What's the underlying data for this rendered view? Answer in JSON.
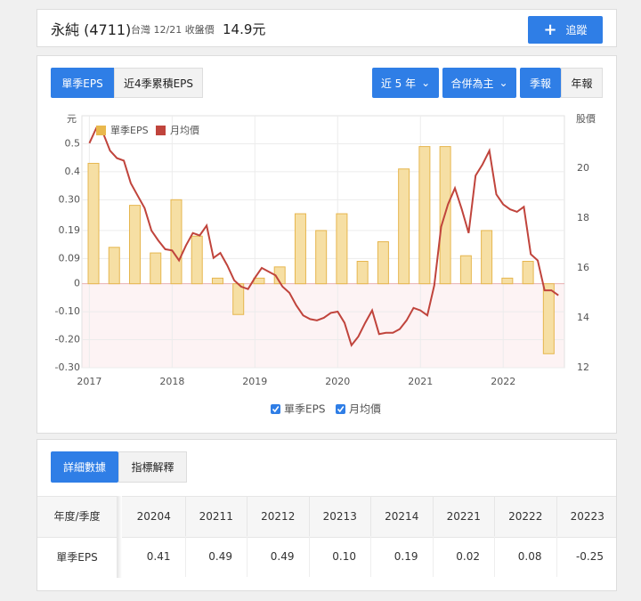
{
  "header": {
    "title": "永純 (4711)",
    "market": "台灣 12/21 收盤價",
    "price": "14.9元",
    "follow": "追蹤"
  },
  "controls": {
    "tabs": [
      "單季EPS",
      "近4季累積EPS"
    ],
    "range": "近 5 年",
    "basis": "合併為主",
    "periods": [
      "季報",
      "年報"
    ]
  },
  "chart_data": {
    "type": "bar-line",
    "ylabel": "元",
    "y2label": "股價",
    "xlim": [
      2016.91,
      2022.74
    ],
    "xticks": [
      2017,
      2018,
      2019,
      2020,
      2021,
      2022
    ],
    "ylim": [
      -0.3,
      0.6
    ],
    "yticks": [
      0.5,
      0.4,
      {
        "value": 0.3,
        "label": "0.30"
      },
      0.19,
      0.09,
      0,
      {
        "value": -0.1,
        "label": "-0.10"
      },
      {
        "value": -0.2,
        "label": "-0.20"
      },
      {
        "value": -0.3,
        "label": "-0.30"
      }
    ],
    "y2lim": [
      12,
      22.1
    ],
    "y2ticks": [
      12,
      14,
      16,
      18,
      20
    ],
    "grid": true,
    "series": [
      {
        "name": "單季EPS",
        "type": "bar",
        "color": "#f6dfa4",
        "x": [
          2017.05,
          2017.3,
          2017.55,
          2017.8,
          2018.05,
          2018.3,
          2018.55,
          2018.8,
          2019.05,
          2019.3,
          2019.55,
          2019.8,
          2020.05,
          2020.3,
          2020.55,
          2020.8,
          2021.05,
          2021.3,
          2021.55,
          2021.8,
          2022.05,
          2022.3,
          2022.55
        ],
        "values": [
          0.43,
          0.13,
          0.28,
          0.11,
          0.3,
          0.17,
          0.02,
          -0.11,
          0.02,
          0.06,
          0.25,
          0.19,
          0.25,
          0.08,
          0.15,
          0.41,
          0.49,
          0.49,
          0.1,
          0.19,
          0.02,
          0.08,
          -0.25
        ]
      },
      {
        "name": "月均價",
        "type": "line",
        "color": "#c0443c",
        "axis": "y2",
        "x": [
          2017,
          2017.083,
          2017.167,
          2017.25,
          2017.333,
          2017.417,
          2017.5,
          2017.583,
          2017.667,
          2017.75,
          2017.833,
          2017.917,
          2018,
          2018.083,
          2018.167,
          2018.25,
          2018.333,
          2018.417,
          2018.5,
          2018.583,
          2018.667,
          2018.75,
          2018.833,
          2018.917,
          2019,
          2019.083,
          2019.167,
          2019.25,
          2019.333,
          2019.417,
          2019.5,
          2019.583,
          2019.667,
          2019.75,
          2019.833,
          2019.917,
          2020,
          2020.083,
          2020.167,
          2020.25,
          2020.333,
          2020.417,
          2020.5,
          2020.583,
          2020.667,
          2020.75,
          2020.833,
          2020.917,
          2021,
          2021.083,
          2021.167,
          2021.25,
          2021.333,
          2021.417,
          2021.5,
          2021.583,
          2021.667,
          2021.75,
          2021.833,
          2021.917,
          2022,
          2022.083,
          2022.167,
          2022.25,
          2022.333,
          2022.417,
          2022.5,
          2022.583,
          2022.667
        ],
        "values": [
          21.0,
          21.6,
          21.4,
          20.7,
          20.4,
          20.3,
          19.4,
          18.9,
          18.4,
          17.5,
          17.1,
          16.75,
          16.7,
          16.3,
          16.9,
          17.4,
          17.3,
          17.7,
          16.4,
          16.6,
          16.1,
          15.5,
          15.25,
          15.15,
          15.6,
          16.0,
          15.85,
          15.7,
          15.25,
          15.0,
          14.5,
          14.1,
          13.95,
          13.9,
          14.0,
          14.2,
          14.25,
          13.8,
          12.9,
          13.25,
          13.8,
          14.3,
          13.35,
          13.4,
          13.4,
          13.55,
          13.9,
          14.4,
          14.3,
          14.1,
          15.3,
          17.65,
          18.55,
          19.2,
          18.35,
          17.4,
          19.7,
          20.15,
          20.7,
          18.95,
          18.55,
          18.35,
          18.25,
          18.45,
          16.55,
          16.3,
          15.1,
          15.1,
          14.9
        ]
      }
    ]
  },
  "table": {
    "tabs": [
      "詳細數據",
      "指標解釋"
    ],
    "header": [
      "年度/季度",
      "20204",
      "20211",
      "20212",
      "20213",
      "20214",
      "20221",
      "20222",
      "20223"
    ],
    "rows": [
      [
        "單季EPS",
        "0.41",
        "0.49",
        "0.49",
        "0.10",
        "0.19",
        "0.02",
        "0.08",
        "-0.25"
      ]
    ]
  }
}
